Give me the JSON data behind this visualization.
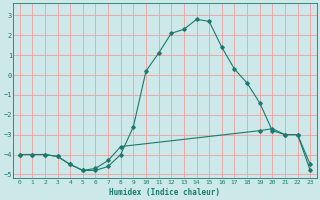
{
  "title": "",
  "xlabel": "Humidex (Indice chaleur)",
  "ylabel": "",
  "background_color": "#cce8e8",
  "grid_color": "#f0a0a0",
  "line_color": "#1a7a6e",
  "xlim": [
    -0.5,
    23.5
  ],
  "ylim": [
    -5.2,
    3.6
  ],
  "yticks": [
    -5,
    -4,
    -3,
    -2,
    -1,
    0,
    1,
    2,
    3
  ],
  "xticks": [
    0,
    1,
    2,
    3,
    4,
    5,
    6,
    7,
    8,
    9,
    10,
    11,
    12,
    13,
    14,
    15,
    16,
    17,
    18,
    19,
    20,
    21,
    22,
    23
  ],
  "curve1_x": [
    0,
    1,
    2,
    3,
    4,
    5,
    6,
    7,
    8,
    9,
    10,
    11,
    12,
    13,
    14,
    15,
    16,
    17,
    18,
    19,
    20,
    21,
    22,
    23
  ],
  "curve1_y": [
    -4.0,
    -4.0,
    -4.0,
    -4.1,
    -4.5,
    -4.8,
    -4.8,
    -4.6,
    -4.0,
    -2.6,
    0.2,
    1.1,
    2.1,
    2.3,
    2.8,
    2.7,
    1.4,
    0.3,
    -0.4,
    -1.4,
    -2.8,
    -3.0,
    -3.0,
    -4.5
  ],
  "curve2_x": [
    0,
    1,
    2,
    3,
    4,
    5,
    6,
    7,
    8,
    19,
    20,
    21,
    22,
    23
  ],
  "curve2_y": [
    -4.0,
    -4.0,
    -4.0,
    -4.1,
    -4.5,
    -4.8,
    -4.7,
    -4.3,
    -3.6,
    -2.8,
    -2.7,
    -3.0,
    -3.0,
    -4.8
  ]
}
